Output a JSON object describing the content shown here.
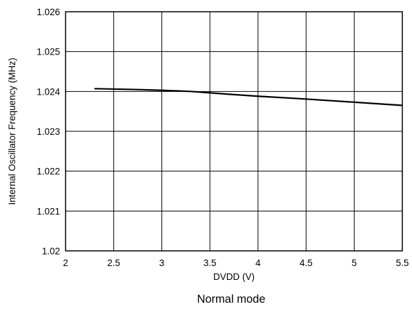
{
  "chart_data": {
    "type": "line",
    "title": "",
    "caption": "Normal mode",
    "xlabel": "DVDD (V)",
    "ylabel": "Internal Oscillator Frequency (MHz)",
    "xlim": [
      2,
      5.5
    ],
    "ylim": [
      1.02,
      1.026
    ],
    "x_ticks": [
      2,
      2.5,
      3,
      3.5,
      4,
      4.5,
      5,
      5.5
    ],
    "x_tick_labels": [
      "2",
      "2.5",
      "3",
      "3.5",
      "4",
      "4.5",
      "5",
      "5.5"
    ],
    "y_ticks": [
      1.02,
      1.021,
      1.022,
      1.023,
      1.024,
      1.025,
      1.026
    ],
    "y_tick_labels": [
      "1.02",
      "1.021",
      "1.022",
      "1.023",
      "1.024",
      "1.025",
      "1.026"
    ],
    "grid": true,
    "series": [
      {
        "color": "#000000",
        "x": [
          2.3,
          2.7,
          3.0,
          3.3,
          3.7,
          4.0,
          4.5,
          5.0,
          5.5
        ],
        "y": [
          1.02407,
          1.02405,
          1.02403,
          1.024,
          1.02393,
          1.02388,
          1.02381,
          1.02373,
          1.02365
        ]
      }
    ]
  }
}
